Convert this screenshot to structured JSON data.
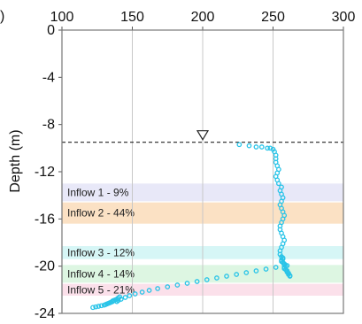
{
  "chart_data": {
    "type": "scatter",
    "title": "",
    "panel_letter": ")",
    "xlabel": "",
    "ylabel": "Depth (m)",
    "xlim": [
      100,
      300
    ],
    "ylim": [
      -24,
      0
    ],
    "x_ticks": [
      100,
      150,
      200,
      250,
      300
    ],
    "y_ticks": [
      0,
      -4,
      -8,
      -12,
      -16,
      -20,
      -24
    ],
    "grid": "vertical",
    "water_level": {
      "depth": -9.5,
      "marker": "triangle-down",
      "marker_x": 200
    },
    "inflow_zones": [
      {
        "label": "Inflow 1 - 9%",
        "top": -13.0,
        "bottom": -14.5,
        "color": "#e8e8f8"
      },
      {
        "label": "Inflow 2 - 44%",
        "top": -14.6,
        "bottom": -16.4,
        "color": "#fbe1c4"
      },
      {
        "label": "Inflow 3 - 12%",
        "top": -18.3,
        "bottom": -19.4,
        "color": "#d6f6f6"
      },
      {
        "label": "Inflow 4 - 14%",
        "top": -19.9,
        "bottom": -21.4,
        "color": "#ddf6e2"
      },
      {
        "label": "Inflow 5 - 21%",
        "top": -21.5,
        "bottom": -22.5,
        "color": "#fbe0ea"
      }
    ],
    "series": [
      {
        "color": "#29c4e8",
        "x": [
          226,
          233,
          238,
          242,
          246,
          248,
          250,
          251,
          252,
          252,
          252,
          253,
          254,
          253,
          252,
          253,
          254,
          256,
          255,
          256,
          257,
          256,
          255,
          256,
          257,
          258,
          257,
          256,
          255,
          255,
          256,
          257,
          258,
          257,
          256,
          255,
          255,
          256,
          257,
          257,
          256,
          256,
          257,
          258,
          258,
          259,
          258,
          258,
          259,
          260,
          260,
          261,
          261,
          262,
          262,
          260,
          252,
          245,
          238,
          231,
          224,
          217,
          210,
          203,
          196,
          189,
          182,
          175,
          168,
          162,
          157,
          152,
          148,
          145,
          142,
          140,
          139,
          141,
          140,
          139,
          138,
          137,
          136,
          136,
          135,
          134,
          133,
          132,
          131,
          130,
          128,
          126,
          124,
          122
        ],
        "y": [
          -9.7,
          -9.8,
          -9.9,
          -9.9,
          -10.0,
          -10.0,
          -10.1,
          -10.3,
          -10.6,
          -10.9,
          -11.2,
          -11.5,
          -11.8,
          -12.1,
          -12.4,
          -12.7,
          -13.0,
          -13.3,
          -13.6,
          -13.9,
          -14.2,
          -14.5,
          -14.8,
          -15.1,
          -15.4,
          -15.7,
          -16.0,
          -16.3,
          -16.6,
          -16.9,
          -17.2,
          -17.5,
          -17.8,
          -18.1,
          -18.4,
          -18.7,
          -19.0,
          -19.2,
          -19.3,
          -19.4,
          -19.5,
          -19.6,
          -19.7,
          -19.8,
          -19.9,
          -20.0,
          -20.1,
          -20.2,
          -20.3,
          -20.4,
          -20.5,
          -20.6,
          -20.7,
          -20.8,
          -20.85,
          -19.95,
          -20.1,
          -20.25,
          -20.4,
          -20.55,
          -20.7,
          -20.85,
          -21.0,
          -21.15,
          -21.3,
          -21.45,
          -21.6,
          -21.75,
          -21.9,
          -22.05,
          -22.2,
          -22.35,
          -22.5,
          -22.65,
          -22.8,
          -22.9,
          -23.0,
          -22.6,
          -22.7,
          -22.8,
          -22.85,
          -22.9,
          -22.95,
          -23.0,
          -23.05,
          -23.1,
          -23.15,
          -23.2,
          -23.25,
          -23.3,
          -23.35,
          -23.4,
          -23.45,
          -23.5
        ]
      }
    ]
  }
}
